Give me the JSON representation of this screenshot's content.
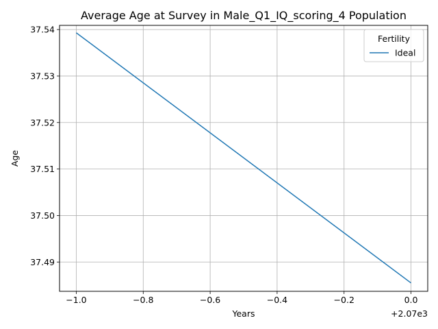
{
  "chart_data": {
    "type": "line",
    "title": "Average Age at Survey in Male_Q1_IQ_scoring_4 Population",
    "xlabel": "Years",
    "ylabel": "Age",
    "x_offset_text": "+2.07e3",
    "xlim": [
      -1.05,
      0.05
    ],
    "ylim": [
      37.4837,
      37.5409
    ],
    "x_ticks": [
      -1.0,
      -0.8,
      -0.6,
      -0.4,
      -0.2,
      0.0
    ],
    "x_tick_labels": [
      "−1.0",
      "−0.8",
      "−0.6",
      "−0.4",
      "−0.2",
      "0.0"
    ],
    "y_ticks": [
      37.49,
      37.5,
      37.51,
      37.52,
      37.53,
      37.54
    ],
    "y_tick_labels": [
      "37.49",
      "37.50",
      "37.51",
      "37.52",
      "37.53",
      "37.54"
    ],
    "grid": true,
    "legend": {
      "title": "Fertility",
      "placement": "top-right"
    },
    "series": [
      {
        "name": "Ideal",
        "color": "#1f77b4",
        "x": [
          -1.0,
          0.0
        ],
        "y": [
          37.5393,
          37.4855
        ]
      }
    ]
  }
}
